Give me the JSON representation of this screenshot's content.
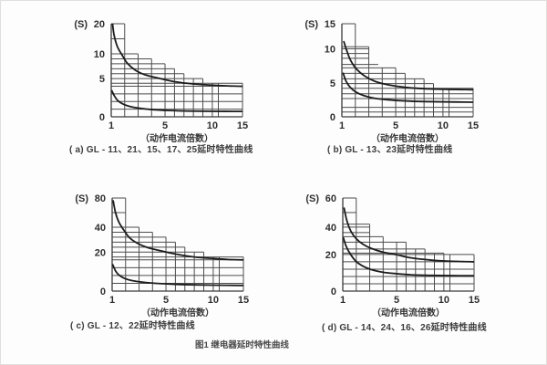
{
  "figure_caption": "图1  继电器延时特性曲线",
  "colors": {
    "grid": "#4d4d4d",
    "axis": "#3b3b3b",
    "curve": "#1c1c1c",
    "text": "#2f2f2f"
  },
  "chart_data": [
    {
      "id": "a",
      "type": "line",
      "title": "( a) GL - 11、21、15、17、25延时特性曲线",
      "ylabel": "(S)",
      "xlabel": "（动作电流倍数）",
      "xlim": [
        1,
        15
      ],
      "ylim": [
        0,
        20
      ],
      "xticks": [
        1,
        5,
        10,
        15
      ],
      "yticks": [
        0,
        5,
        10,
        20
      ],
      "x_anchors": {
        "values": [
          1,
          5,
          10,
          15
        ],
        "fractions": [
          0,
          0.41,
          0.77,
          1
        ]
      },
      "y_anchors": {
        "values": [
          0,
          5,
          10,
          20
        ],
        "fractions": [
          0,
          0.41,
          0.676,
          1
        ]
      },
      "envelope_steps": [
        [
          2,
          20
        ],
        [
          3,
          10
        ],
        [
          4,
          9
        ],
        [
          5,
          8
        ],
        [
          6,
          7
        ],
        [
          7,
          6
        ],
        [
          9,
          5
        ],
        [
          15,
          4.4
        ]
      ],
      "left_lines": [
        [
          15,
          2
        ]
      ],
      "full_lines": [
        1,
        2,
        3,
        4
      ],
      "vlines": [
        [
          2,
          20
        ],
        [
          3,
          10
        ],
        [
          4,
          9
        ],
        [
          5,
          8
        ],
        [
          6,
          7
        ],
        [
          7,
          6
        ],
        [
          8,
          5
        ],
        [
          9,
          5
        ],
        [
          10,
          4.4
        ],
        [
          11,
          4.4
        ],
        [
          15,
          4.4
        ]
      ],
      "series": [
        {
          "name": "upper-curve",
          "points": [
            [
              1.05,
              22
            ],
            [
              1.2,
              16.5
            ],
            [
              1.45,
              12.5
            ],
            [
              1.8,
              9.8
            ],
            [
              2.2,
              8.1
            ],
            [
              2.8,
              6.7
            ],
            [
              3.5,
              5.8
            ],
            [
              4.5,
              5.1
            ],
            [
              6,
              4.6
            ],
            [
              8,
              4.3
            ],
            [
              10,
              4.15
            ],
            [
              12.5,
              4.05
            ],
            [
              15,
              4.0
            ]
          ]
        },
        {
          "name": "lower-curve",
          "points": [
            [
              1.05,
              3.4
            ],
            [
              1.25,
              2.7
            ],
            [
              1.5,
              2.1
            ],
            [
              1.9,
              1.65
            ],
            [
              2.4,
              1.35
            ],
            [
              3,
              1.15
            ],
            [
              4,
              0.95
            ],
            [
              5.5,
              0.82
            ],
            [
              7.5,
              0.75
            ],
            [
              10,
              0.72
            ],
            [
              15,
              0.7
            ]
          ]
        }
      ]
    },
    {
      "id": "b",
      "type": "line",
      "title": "( b) GL - 13、23延时特性曲线",
      "ylabel": "(S)",
      "xlabel": "（动作电流倍数）",
      "xlim": [
        1,
        15
      ],
      "ylim": [
        0,
        15
      ],
      "xticks": [
        1,
        5,
        10,
        15
      ],
      "yticks": [
        0,
        5,
        10,
        15
      ],
      "x_anchors": {
        "values": [
          1,
          5,
          10,
          15
        ],
        "fractions": [
          0,
          0.41,
          0.77,
          1
        ]
      },
      "y_anchors": {
        "values": [
          0,
          5,
          10,
          15
        ],
        "fractions": [
          0,
          0.364,
          0.731,
          1
        ]
      },
      "envelope_steps": [
        [
          2,
          15
        ],
        [
          3,
          10.4
        ],
        [
          5,
          7.2
        ],
        [
          6,
          6.4
        ],
        [
          8,
          5.6
        ],
        [
          9,
          4.9
        ],
        [
          15,
          4.2
        ]
      ],
      "left_lines": [
        [
          10,
          3
        ],
        [
          9.3,
          3
        ],
        [
          8.6,
          3
        ],
        [
          7.7,
          3.7
        ]
      ],
      "full_lines": [
        0.7,
        1.4,
        2.7,
        3.4
      ],
      "vlines": [
        [
          2,
          15
        ],
        [
          3,
          10.4
        ],
        [
          4,
          7.2
        ],
        [
          5,
          7.2
        ],
        [
          6,
          6.4
        ],
        [
          7,
          5.6
        ],
        [
          8,
          5.6
        ],
        [
          9,
          4.9
        ],
        [
          10,
          4.2
        ],
        [
          11,
          4.2
        ],
        [
          15,
          4.2
        ]
      ],
      "series": [
        {
          "name": "upper-curve",
          "points": [
            [
              1.15,
              11.4
            ],
            [
              1.35,
              9.8
            ],
            [
              1.65,
              8.3
            ],
            [
              2.1,
              7.0
            ],
            [
              2.7,
              6.0
            ],
            [
              3.5,
              5.2
            ],
            [
              4.5,
              4.7
            ],
            [
              6,
              4.35
            ],
            [
              8,
              4.15
            ],
            [
              11,
              4.05
            ],
            [
              15,
              4.0
            ]
          ]
        },
        {
          "name": "lower-curve",
          "points": [
            [
              1.1,
              6.4
            ],
            [
              1.3,
              5.3
            ],
            [
              1.6,
              4.4
            ],
            [
              2,
              3.7
            ],
            [
              2.6,
              3.15
            ],
            [
              3.4,
              2.75
            ],
            [
              4.5,
              2.5
            ],
            [
              6,
              2.35
            ],
            [
              8,
              2.25
            ],
            [
              11,
              2.2
            ],
            [
              15,
              2.15
            ]
          ]
        }
      ]
    },
    {
      "id": "c",
      "type": "line",
      "title": "( c) GL - 12、22延时特性曲线",
      "ylabel": "(S)",
      "xlabel": "（动作电流倍数）",
      "xlim": [
        1,
        15
      ],
      "ylim": [
        0,
        80
      ],
      "xticks": [
        1,
        5,
        10,
        15
      ],
      "yticks": [
        0,
        20,
        40,
        80
      ],
      "x_anchors": {
        "values": [
          1,
          5,
          10,
          15
        ],
        "fractions": [
          0,
          0.41,
          0.77,
          1
        ]
      },
      "y_anchors": {
        "values": [
          0,
          20,
          40,
          80
        ],
        "fractions": [
          0,
          0.419,
          0.686,
          1
        ]
      },
      "envelope_steps": [
        [
          2,
          80
        ],
        [
          3,
          40
        ],
        [
          4,
          36
        ],
        [
          5,
          32
        ],
        [
          6,
          28
        ],
        [
          7,
          24
        ],
        [
          9,
          20
        ],
        [
          15,
          17.5
        ]
      ],
      "left_lines": [
        [
          60,
          2
        ]
      ],
      "full_lines": [
        4,
        8,
        12,
        16
      ],
      "vlines": [
        [
          2,
          80
        ],
        [
          3,
          40
        ],
        [
          4,
          36
        ],
        [
          5,
          32
        ],
        [
          6,
          28
        ],
        [
          7,
          24
        ],
        [
          8,
          20
        ],
        [
          9,
          20
        ],
        [
          10,
          17.5
        ],
        [
          11,
          17.5
        ],
        [
          15,
          17.5
        ]
      ],
      "series": [
        {
          "name": "upper-curve",
          "points": [
            [
              1.08,
              76
            ],
            [
              1.25,
              60
            ],
            [
              1.5,
              47
            ],
            [
              1.85,
              38
            ],
            [
              2.3,
              31.5
            ],
            [
              2.9,
              27
            ],
            [
              3.6,
              23.8
            ],
            [
              4.5,
              21.3
            ],
            [
              6,
              19
            ],
            [
              8,
              17.5
            ],
            [
              10,
              16.7
            ],
            [
              12.5,
              16.2
            ],
            [
              15,
              16
            ]
          ]
        },
        {
          "name": "lower-curve",
          "points": [
            [
              1.05,
              13.5
            ],
            [
              1.25,
              10.4
            ],
            [
              1.5,
              8.3
            ],
            [
              1.9,
              6.6
            ],
            [
              2.4,
              5.5
            ],
            [
              3,
              4.8
            ],
            [
              4,
              4.1
            ],
            [
              5.5,
              3.6
            ],
            [
              7.5,
              3.25
            ],
            [
              10,
              3.05
            ],
            [
              15,
              2.9
            ]
          ]
        }
      ]
    },
    {
      "id": "d",
      "type": "line",
      "title": "( d) GL - 14、24、16、26延时特性曲线",
      "ylabel": "(S)",
      "xlabel": "（动作电流倍数）",
      "xlim": [
        1,
        15
      ],
      "ylim": [
        0,
        60
      ],
      "xticks": [
        1,
        5,
        10,
        15
      ],
      "yticks": [
        0,
        20,
        40,
        60
      ],
      "x_anchors": {
        "values": [
          1,
          5,
          10,
          15
        ],
        "fractions": [
          0,
          0.41,
          0.77,
          1
        ]
      },
      "y_anchors": {
        "values": [
          0,
          20,
          40,
          60
        ],
        "fractions": [
          0,
          0.393,
          0.688,
          1
        ]
      },
      "envelope_steps": [
        [
          2,
          60
        ],
        [
          3,
          42
        ],
        [
          4,
          33
        ],
        [
          6,
          29
        ],
        [
          8,
          24
        ],
        [
          10,
          21
        ],
        [
          15,
          20
        ]
      ],
      "left_lines": [
        [
          50,
          2
        ],
        [
          40,
          3
        ],
        [
          36,
          3
        ]
      ],
      "full_lines": [
        4,
        8,
        12,
        16
      ],
      "vlines": [
        [
          2,
          60
        ],
        [
          3,
          42
        ],
        [
          4,
          33
        ],
        [
          5,
          29
        ],
        [
          6,
          29
        ],
        [
          7,
          24
        ],
        [
          8,
          24
        ],
        [
          9,
          21
        ],
        [
          10,
          21
        ],
        [
          11,
          20
        ],
        [
          15,
          20
        ]
      ],
      "series": [
        {
          "name": "upper-curve",
          "points": [
            [
              1.1,
              53
            ],
            [
              1.3,
              44.5
            ],
            [
              1.6,
              37
            ],
            [
              2,
              31.5
            ],
            [
              2.5,
              27.5
            ],
            [
              3.1,
              24.5
            ],
            [
              4,
              21.7
            ],
            [
              5,
              19.9
            ],
            [
              6.5,
              18.2
            ],
            [
              8.5,
              17
            ],
            [
              10.5,
              16.4
            ],
            [
              15,
              16
            ]
          ]
        },
        {
          "name": "lower-curve",
          "points": [
            [
              1.05,
              32
            ],
            [
              1.25,
              26
            ],
            [
              1.55,
              20.5
            ],
            [
              1.95,
              16.5
            ],
            [
              2.45,
              13.8
            ],
            [
              3.1,
              11.8
            ],
            [
              4,
              10.3
            ],
            [
              5,
              9.5
            ],
            [
              6.5,
              8.9
            ],
            [
              8.5,
              8.6
            ],
            [
              11,
              8.45
            ],
            [
              15,
              8.4
            ]
          ]
        }
      ]
    }
  ]
}
